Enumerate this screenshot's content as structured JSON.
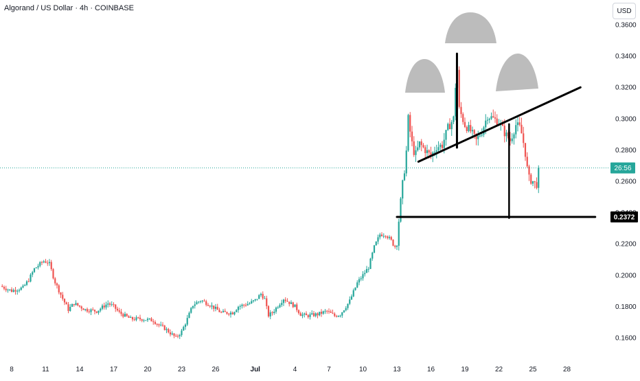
{
  "chart_data": {
    "type": "candlestick",
    "title": "Algorand / US Dollar · 4h · COINBASE",
    "currency": "USD",
    "ylim": [
      0.15,
      0.365
    ],
    "y_ticks": [
      "0.3600",
      "0.3400",
      "0.3200",
      "0.3000",
      "0.2800",
      "0.2600",
      "0.2400",
      "0.2200",
      "0.2000",
      "0.1800",
      "0.1600"
    ],
    "x_ticks": [
      {
        "label": "8",
        "day": 8
      },
      {
        "label": "11",
        "day": 11
      },
      {
        "label": "14",
        "day": 14
      },
      {
        "label": "17",
        "day": 17
      },
      {
        "label": "20",
        "day": 20
      },
      {
        "label": "23",
        "day": 23
      },
      {
        "label": "26",
        "day": 26
      },
      {
        "label": "Jul",
        "day": 29.5,
        "bold": true
      },
      {
        "label": "4",
        "day": 33
      },
      {
        "label": "7",
        "day": 36
      },
      {
        "label": "10",
        "day": 39
      },
      {
        "label": "13",
        "day": 42
      },
      {
        "label": "16",
        "day": 45
      },
      {
        "label": "19",
        "day": 48
      },
      {
        "label": "22",
        "day": 51
      },
      {
        "label": "25",
        "day": 54
      },
      {
        "label": "28",
        "day": 57
      }
    ],
    "current_price_countdown": "26:56",
    "level_label": "0.2372",
    "level_price": 0.2372,
    "current_price": 0.2685,
    "colors": {
      "up": "#26a69a",
      "down": "#ef5350",
      "drawing": "#000000",
      "shapes": "#bcbcbc"
    },
    "price_path": [
      [
        7.0,
        0.193
      ],
      [
        8.0,
        0.19
      ],
      [
        9.0,
        0.192
      ],
      [
        9.5,
        0.197
      ],
      [
        10.0,
        0.204
      ],
      [
        10.8,
        0.209
      ],
      [
        11.3,
        0.208
      ],
      [
        11.8,
        0.196
      ],
      [
        12.5,
        0.185
      ],
      [
        13.0,
        0.178
      ],
      [
        13.5,
        0.182
      ],
      [
        14.0,
        0.18
      ],
      [
        14.5,
        0.178
      ],
      [
        15.5,
        0.177
      ],
      [
        16.5,
        0.182
      ],
      [
        17.0,
        0.18
      ],
      [
        17.5,
        0.176
      ],
      [
        18.5,
        0.172
      ],
      [
        19.5,
        0.172
      ],
      [
        20.5,
        0.171
      ],
      [
        21.0,
        0.168
      ],
      [
        21.5,
        0.166
      ],
      [
        22.5,
        0.16
      ],
      [
        23.0,
        0.164
      ],
      [
        23.5,
        0.172
      ],
      [
        24.0,
        0.181
      ],
      [
        24.7,
        0.184
      ],
      [
        25.5,
        0.181
      ],
      [
        26.5,
        0.176
      ],
      [
        27.5,
        0.176
      ],
      [
        28.0,
        0.18
      ],
      [
        29.0,
        0.182
      ],
      [
        29.5,
        0.184
      ],
      [
        30.0,
        0.188
      ],
      [
        30.4,
        0.184
      ],
      [
        30.6,
        0.174
      ],
      [
        31.0,
        0.176
      ],
      [
        32.0,
        0.185
      ],
      [
        33.0,
        0.18
      ],
      [
        33.5,
        0.175
      ],
      [
        34.0,
        0.174
      ],
      [
        35.0,
        0.175
      ],
      [
        35.8,
        0.177
      ],
      [
        36.5,
        0.174
      ],
      [
        37.0,
        0.175
      ],
      [
        37.8,
        0.183
      ],
      [
        38.5,
        0.195
      ],
      [
        39.0,
        0.2
      ],
      [
        39.5,
        0.205
      ],
      [
        40.0,
        0.218
      ],
      [
        40.5,
        0.226
      ],
      [
        41.0,
        0.226
      ],
      [
        41.5,
        0.222
      ],
      [
        41.8,
        0.218
      ],
      [
        42.0,
        0.22
      ],
      [
        42.2,
        0.238
      ],
      [
        42.5,
        0.258
      ],
      [
        42.8,
        0.275
      ],
      [
        43.0,
        0.3
      ],
      [
        43.3,
        0.285
      ],
      [
        43.6,
        0.276
      ],
      [
        44.0,
        0.284
      ],
      [
        44.5,
        0.28
      ],
      [
        45.0,
        0.276
      ],
      [
        45.5,
        0.282
      ],
      [
        46.0,
        0.283
      ],
      [
        46.5,
        0.294
      ],
      [
        47.0,
        0.3
      ],
      [
        47.2,
        0.325
      ],
      [
        47.35,
        0.332
      ],
      [
        47.5,
        0.306
      ],
      [
        48.0,
        0.296
      ],
      [
        48.5,
        0.292
      ],
      [
        49.0,
        0.286
      ],
      [
        49.5,
        0.292
      ],
      [
        50.0,
        0.302
      ],
      [
        50.5,
        0.3
      ],
      [
        51.0,
        0.298
      ],
      [
        51.5,
        0.291
      ],
      [
        52.0,
        0.286
      ],
      [
        52.5,
        0.296
      ],
      [
        52.9,
        0.294
      ],
      [
        53.3,
        0.28
      ],
      [
        53.6,
        0.262
      ],
      [
        54.0,
        0.26
      ],
      [
        54.3,
        0.257
      ],
      [
        54.6,
        0.2685
      ]
    ],
    "drawings": {
      "neckline": [
        [
          43.9,
          0.2725
        ],
        [
          58.2,
          0.32
        ]
      ],
      "head_stem": [
        [
          47.3,
          0.3415
        ],
        [
          47.3,
          0.2815
        ]
      ],
      "target_vertical": [
        [
          51.9,
          0.2965
        ],
        [
          51.9,
          0.2365
        ]
      ],
      "target_horizontal": [
        [
          42.0,
          0.2372
        ],
        [
          59.5,
          0.2372
        ]
      ]
    }
  }
}
